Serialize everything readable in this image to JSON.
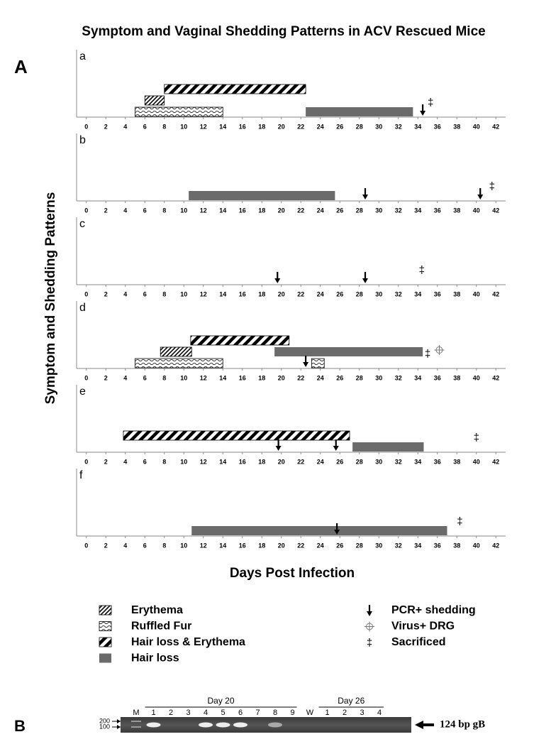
{
  "title": "Symptom and Vaginal Shedding Patterns in ACV Rescued Mice",
  "panel_label": "A",
  "y_label": "Symptom and Shedding Patterns",
  "x_label": "Days Post Infection",
  "legend": [
    "Erythema",
    "Ruffled Fur",
    "Hair loss & Erythema",
    "Hair loss",
    "PCR+ shedding",
    "Virus+ DRG",
    "Sacrificed"
  ],
  "legend_symbols": [
    "‡"
  ],
  "chart_data": [
    {
      "type": "timeline",
      "label": "a",
      "xlim": [
        -1,
        43
      ],
      "xticks": [
        0,
        2,
        4,
        6,
        8,
        10,
        12,
        14,
        16,
        18,
        20,
        22,
        24,
        26,
        28,
        30,
        32,
        34,
        36,
        38,
        40,
        42
      ],
      "series": [
        {
          "name": "Ruffled Fur",
          "bars": [
            [
              5,
              14
            ]
          ]
        },
        {
          "name": "Erythema",
          "bars": [
            [
              6,
              8
            ]
          ]
        },
        {
          "name": "Hair loss & Erythema",
          "bars": [
            [
              8,
              22.5
            ]
          ]
        },
        {
          "name": "Hair loss",
          "bars": [
            [
              22.5,
              33.5
            ]
          ]
        }
      ],
      "events": [
        {
          "name": "PCR+ shedding",
          "x": [
            34.5
          ]
        },
        {
          "name": "Sacrificed",
          "x": [
            35.3
          ]
        }
      ]
    },
    {
      "type": "timeline",
      "label": "b",
      "xlim": [
        -1,
        43
      ],
      "xticks": [
        0,
        2,
        4,
        6,
        8,
        10,
        12,
        14,
        16,
        18,
        20,
        22,
        24,
        26,
        28,
        30,
        32,
        34,
        36,
        38,
        40,
        42
      ],
      "series": [
        {
          "name": "Hair loss",
          "bars": [
            [
              10.5,
              25.5
            ]
          ]
        }
      ],
      "events": [
        {
          "name": "PCR+ shedding",
          "x": [
            28.6,
            40.4
          ]
        },
        {
          "name": "Sacrificed",
          "x": [
            41.6
          ]
        }
      ]
    },
    {
      "type": "timeline",
      "label": "c",
      "xlim": [
        -1,
        43
      ],
      "xticks": [
        0,
        2,
        4,
        6,
        8,
        10,
        12,
        14,
        16,
        18,
        20,
        22,
        24,
        26,
        28,
        30,
        32,
        34,
        36,
        38,
        40,
        42
      ],
      "series": [],
      "events": [
        {
          "name": "PCR+ shedding",
          "x": [
            19.6,
            28.6
          ]
        },
        {
          "name": "Sacrificed",
          "x": [
            34.4
          ]
        }
      ]
    },
    {
      "type": "timeline",
      "label": "d",
      "xlim": [
        -1,
        43
      ],
      "xticks": [
        0,
        2,
        4,
        6,
        8,
        10,
        12,
        14,
        16,
        18,
        20,
        22,
        24,
        26,
        28,
        30,
        32,
        34,
        36,
        38,
        40,
        42
      ],
      "series": [
        {
          "name": "Ruffled Fur",
          "bars": [
            [
              5,
              14
            ],
            [
              23.1,
              24.4
            ]
          ]
        },
        {
          "name": "Erythema",
          "bars": [
            [
              7.6,
              10.8
            ]
          ]
        },
        {
          "name": "Hair loss & Erythema",
          "bars": [
            [
              10.7,
              20.8
            ]
          ]
        },
        {
          "name": "Hair loss",
          "bars": [
            [
              19.3,
              34.5
            ]
          ]
        }
      ],
      "events": [
        {
          "name": "PCR+ shedding",
          "x": [
            22.5
          ]
        },
        {
          "name": "Sacrificed",
          "x": [
            35
          ]
        },
        {
          "name": "Virus+ DRG",
          "x": [
            36.2
          ]
        }
      ]
    },
    {
      "type": "timeline",
      "label": "e",
      "xlim": [
        -1,
        43
      ],
      "xticks": [
        0,
        2,
        4,
        6,
        8,
        10,
        12,
        14,
        16,
        18,
        20,
        22,
        24,
        26,
        28,
        30,
        32,
        34,
        36,
        38,
        40,
        42
      ],
      "series": [
        {
          "name": "Hair loss",
          "bars": [
            [
              27.3,
              34.6
            ]
          ]
        },
        {
          "name": "Hair loss & Erythema",
          "bars": [
            [
              3.8,
              27
            ]
          ]
        }
      ],
      "events": [
        {
          "name": "PCR+ shedding",
          "x": [
            19.7,
            25.6
          ]
        },
        {
          "name": "Sacrificed",
          "x": [
            40
          ]
        }
      ]
    },
    {
      "type": "timeline",
      "label": "f",
      "xlim": [
        -1,
        43
      ],
      "xticks": [
        0,
        2,
        4,
        6,
        8,
        10,
        12,
        14,
        16,
        18,
        20,
        22,
        24,
        26,
        28,
        30,
        32,
        34,
        36,
        38,
        40,
        42
      ],
      "series": [
        {
          "name": "Hair loss",
          "bars": [
            [
              10.8,
              37
            ]
          ]
        }
      ],
      "events": [
        {
          "name": "PCR+ shedding",
          "x": [
            25.7
          ]
        },
        {
          "name": "Sacrificed",
          "x": [
            38.3
          ]
        }
      ]
    }
  ],
  "panel_b": {
    "label": "B",
    "group_labels": [
      "Day 20",
      "Day 26"
    ],
    "markers": [
      "200",
      "100"
    ],
    "product": "124 bp gB",
    "lanes": [
      {
        "label": "M",
        "band": true
      },
      {
        "label": "1",
        "band": true
      },
      {
        "label": "2",
        "band": false
      },
      {
        "label": "3",
        "band": false
      },
      {
        "label": "4",
        "band": true
      },
      {
        "label": "5",
        "band": true
      },
      {
        "label": "6",
        "band": true
      },
      {
        "label": "7",
        "band": false
      },
      {
        "label": "8",
        "band": true
      },
      {
        "label": "9",
        "band": false
      },
      {
        "label": "W",
        "band": false
      },
      {
        "label": "1",
        "band": false
      },
      {
        "label": "2",
        "band": false
      },
      {
        "label": "3",
        "band": false
      },
      {
        "label": "4",
        "band": false
      }
    ]
  }
}
